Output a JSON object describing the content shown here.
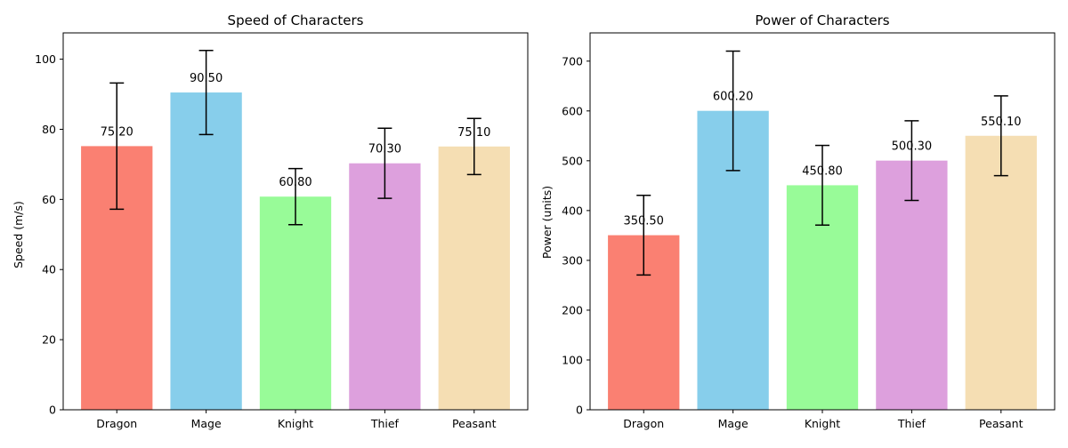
{
  "chart_data": [
    {
      "type": "bar",
      "title": "Speed of Characters",
      "xlabel": "",
      "ylabel": "Speed (m/s)",
      "ylim": [
        0,
        107.5
      ],
      "yticks": [
        0,
        20,
        40,
        60,
        80,
        100
      ],
      "categories": [
        "Dragon",
        "Mage",
        "Knight",
        "Thief",
        "Peasant"
      ],
      "values": [
        75.2,
        90.5,
        60.8,
        70.3,
        75.1
      ],
      "errors": [
        18,
        12,
        8,
        10,
        8
      ],
      "value_labels": [
        "75.20",
        "90.50",
        "60.80",
        "70.30",
        "75.10"
      ],
      "colors": [
        "#fa8072",
        "#87ceeb",
        "#98fb98",
        "#dda0dd",
        "#f5deb3"
      ],
      "grid": false
    },
    {
      "type": "bar",
      "title": "Power of Characters",
      "xlabel": "",
      "ylabel": "Power (units)",
      "ylim": [
        0,
        756.7
      ],
      "yticks": [
        0,
        100,
        200,
        300,
        400,
        500,
        600,
        700
      ],
      "categories": [
        "Dragon",
        "Mage",
        "Knight",
        "Thief",
        "Peasant"
      ],
      "values": [
        350.5,
        600.2,
        450.8,
        500.3,
        550.1
      ],
      "errors": [
        80,
        120,
        80,
        80,
        80
      ],
      "value_labels": [
        "350.50",
        "600.20",
        "450.80",
        "500.30",
        "550.10"
      ],
      "colors": [
        "#fa8072",
        "#87ceeb",
        "#98fb98",
        "#dda0dd",
        "#f5deb3"
      ],
      "grid": false
    }
  ]
}
